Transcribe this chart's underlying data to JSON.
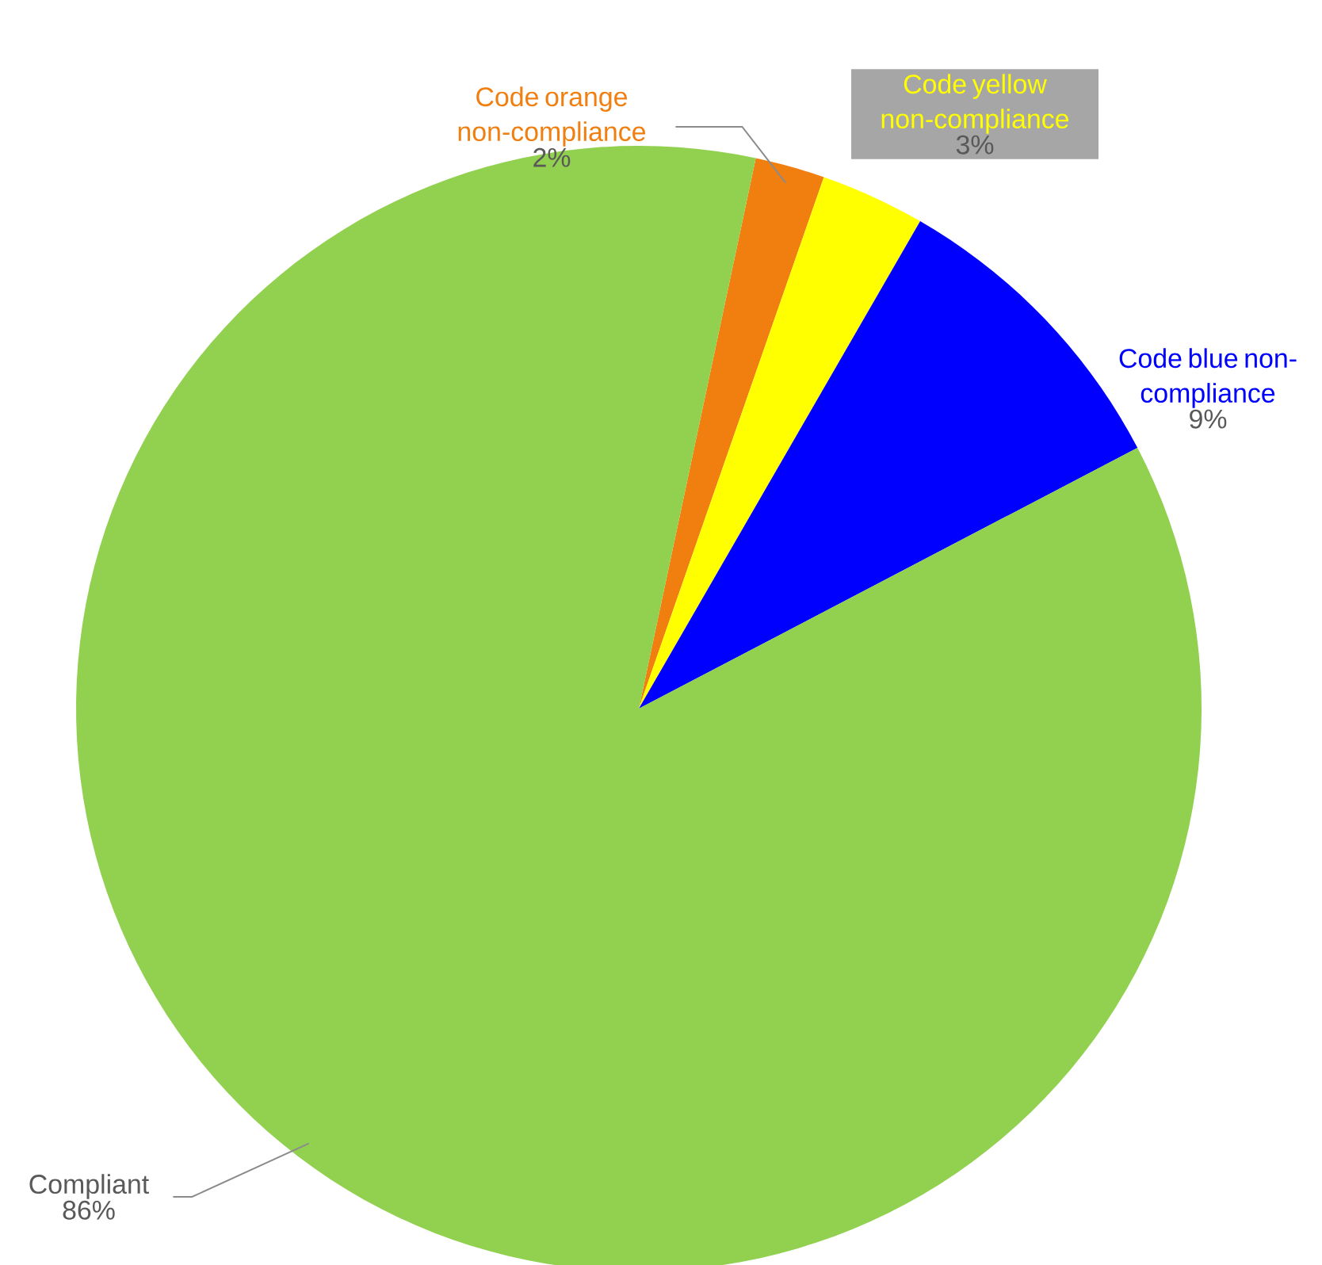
{
  "chart_data": {
    "type": "pie",
    "categories": [
      "Code orange non-compliance",
      "Code yellow non-compliance",
      "Code blue non-compliance",
      "Compliant"
    ],
    "values": [
      2,
      3,
      9,
      86
    ],
    "value_labels": [
      "2%",
      "3%",
      "9%",
      "86%"
    ],
    "colors": [
      "#f07f10",
      "#ffff00",
      "#0000ff",
      "#92d050"
    ]
  }
}
